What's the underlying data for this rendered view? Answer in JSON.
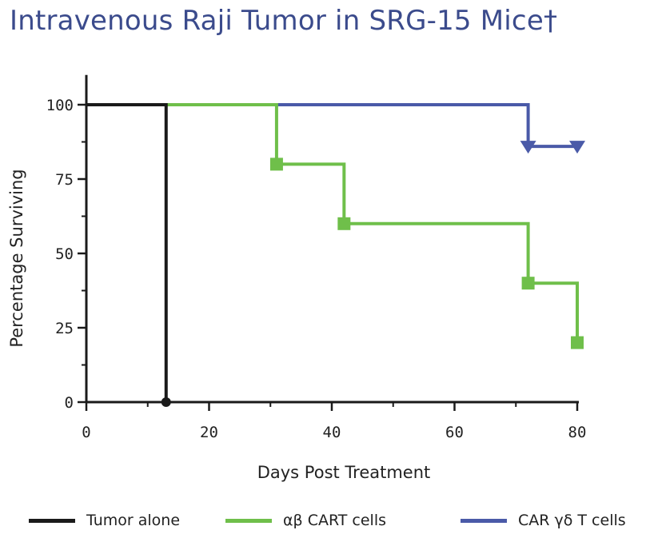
{
  "chart_data": {
    "type": "line",
    "subtype": "kaplan-meier step",
    "title": "Intravenous Raji Tumor in SRG-15 Mice†",
    "xlabel": "Days Post Treatment",
    "ylabel": "Percentage Surviving",
    "xlim": [
      0,
      80
    ],
    "ylim": [
      0,
      110
    ],
    "xticks": [
      0,
      20,
      40,
      60,
      80
    ],
    "yticks": [
      0,
      25,
      50,
      75,
      100
    ],
    "grid": false,
    "legend_position": "bottom",
    "series": [
      {
        "name": "Tumor alone",
        "color": "#1a1a1a",
        "marker": "circle",
        "steps": [
          [
            0,
            100
          ],
          [
            13,
            0
          ]
        ],
        "markers": [
          [
            13,
            0
          ]
        ]
      },
      {
        "name": "αβ CART cells",
        "color": "#6fbf4a",
        "marker": "square",
        "steps": [
          [
            0,
            100
          ],
          [
            31,
            80
          ],
          [
            42,
            60
          ],
          [
            72,
            40
          ],
          [
            80,
            20
          ]
        ],
        "markers": [
          [
            31,
            80
          ],
          [
            42,
            60
          ],
          [
            72,
            40
          ],
          [
            80,
            20
          ]
        ]
      },
      {
        "name": "CAR γδ T cells",
        "color": "#4a5aa8",
        "marker": "triangle-down",
        "steps": [
          [
            0,
            100
          ],
          [
            72,
            86
          ]
        ],
        "end_x": 80,
        "markers": [
          [
            72,
            86
          ],
          [
            80,
            86
          ]
        ]
      }
    ]
  }
}
